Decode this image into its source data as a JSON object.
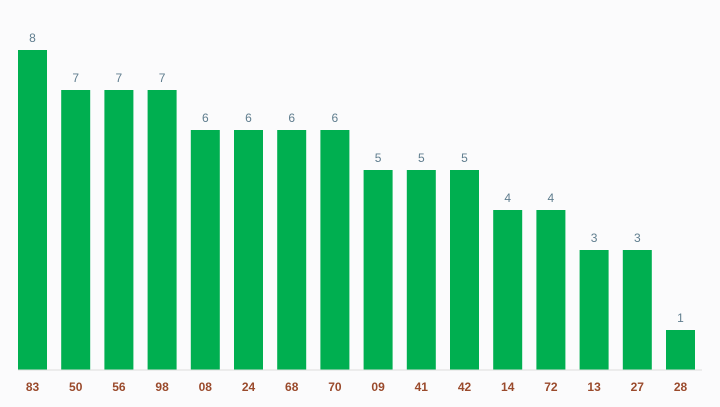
{
  "chart_data": {
    "type": "bar",
    "categories": [
      "83",
      "50",
      "56",
      "98",
      "08",
      "24",
      "68",
      "70",
      "09",
      "41",
      "42",
      "14",
      "72",
      "13",
      "27",
      "28"
    ],
    "values": [
      8,
      7,
      7,
      7,
      6,
      6,
      6,
      6,
      5,
      5,
      5,
      4,
      4,
      3,
      3,
      1
    ],
    "ylim": [
      0,
      8
    ],
    "grid": false,
    "legend": "none",
    "colors": {
      "bar": "#00af50",
      "value_label": "#5f7d8e",
      "category_label": "#9a4a2c",
      "background": "#fbfbfc"
    }
  }
}
